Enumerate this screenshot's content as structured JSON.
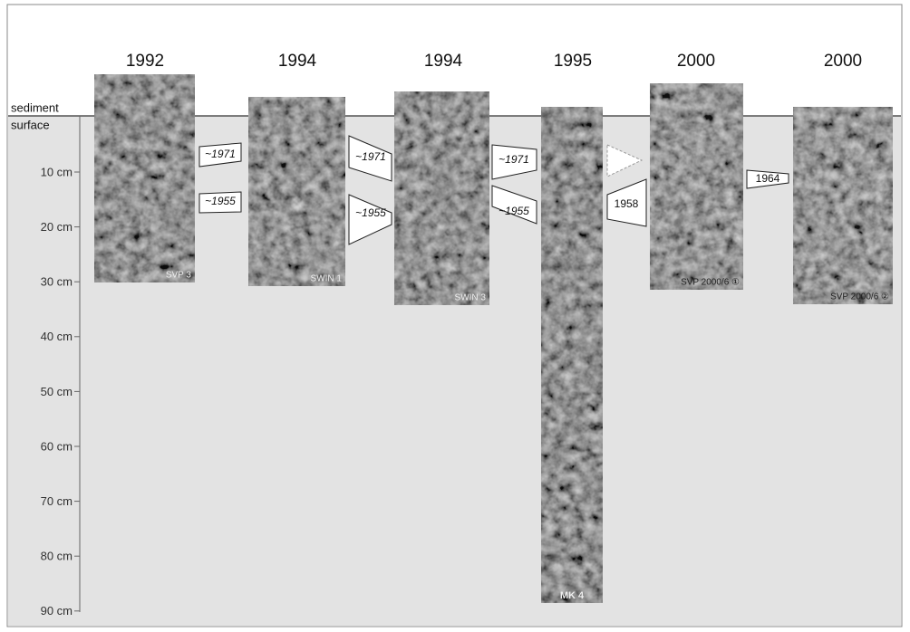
{
  "years": [
    "1992",
    "1994",
    "1994",
    "1995",
    "2000",
    "2000"
  ],
  "surface_label": {
    "line1": "sediment",
    "line2": "surface"
  },
  "depth_ticks": [
    "10 cm",
    "20 cm",
    "30 cm",
    "40 cm",
    "50 cm",
    "60 cm",
    "70 cm",
    "80 cm",
    "90 cm"
  ],
  "cores": [
    {
      "label": "SVP 3"
    },
    {
      "label": "SWIN 1"
    },
    {
      "label": "SWIN 3"
    },
    {
      "label": "MK 4"
    },
    {
      "label": "SVP 2000/6 ①"
    },
    {
      "label": "SVP 2000/6 ②"
    }
  ],
  "markers": [
    {
      "label": "~1971"
    },
    {
      "label": "~1955"
    },
    {
      "label": "~1971"
    },
    {
      "label": "~1955"
    },
    {
      "label": "~1971"
    },
    {
      "label": "~1955"
    },
    {
      "label": "1958"
    },
    {
      "label": "1964"
    }
  ]
}
